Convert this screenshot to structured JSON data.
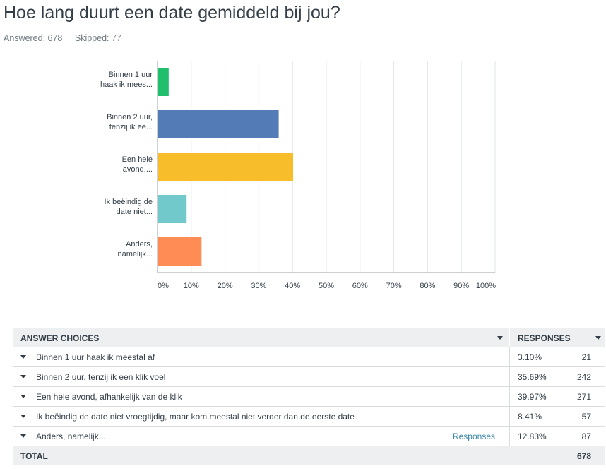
{
  "question": {
    "title": "Hoe lang duurt een date gemiddeld bij jou?",
    "answered": "Answered: 678",
    "skipped": "Skipped: 77"
  },
  "chart_data": {
    "type": "bar",
    "orientation": "horizontal",
    "categories": [
      [
        "Binnen 1 uur",
        "haak ik mees..."
      ],
      [
        "Binnen 2 uur,",
        "tenzij ik ee..."
      ],
      [
        "Een hele",
        "avond,..."
      ],
      [
        "Ik beëindig de",
        "date niet..."
      ],
      [
        "Anders,",
        "namelijk..."
      ]
    ],
    "values": [
      3.1,
      35.69,
      39.97,
      8.41,
      12.83
    ],
    "colors": [
      "#1fbf6b",
      "#537bb5",
      "#f7bd2a",
      "#72c9cc",
      "#ff8b55"
    ],
    "xlim": [
      0,
      100
    ],
    "ticks": [
      "0%",
      "10%",
      "20%",
      "30%",
      "40%",
      "50%",
      "60%",
      "70%",
      "80%",
      "90%",
      "100%"
    ],
    "grid": true,
    "legend": "none"
  },
  "table": {
    "header_choices": "ANSWER CHOICES",
    "header_responses": "RESPONSES",
    "rows": [
      {
        "choice": "Binnen 1 uur haak ik meestal af",
        "pct": "3.10%",
        "count": "21",
        "link": ""
      },
      {
        "choice": "Binnen 2 uur, tenzij ik een klik voel",
        "pct": "35.69%",
        "count": "242",
        "link": ""
      },
      {
        "choice": "Een hele avond, afhankelijk van de klik",
        "pct": "39.97%",
        "count": "271",
        "link": ""
      },
      {
        "choice": "Ik beëindig de date niet vroegtijdig, maar kom meestal niet verder dan de eerste date",
        "pct": "8.41%",
        "count": "57",
        "link": ""
      },
      {
        "choice": "Anders, namelijk...",
        "pct": "12.83%",
        "count": "87",
        "link": "Responses"
      }
    ],
    "total_label": "TOTAL",
    "total_count": "678"
  }
}
